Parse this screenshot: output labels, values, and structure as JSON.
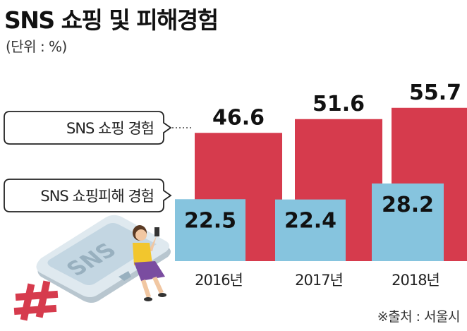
{
  "title": "SNS 쇼핑 및 피해경험",
  "unit_label": "(단위 : %)",
  "source": "※출처 : 서울시",
  "illustration_text": "SNS",
  "colors": {
    "experience": "#d63b4d",
    "damage": "#86c4de",
    "phone_body": "#dfe9ef",
    "hashtag": "#d63b4d",
    "dress": "#7a4ca0",
    "shirt": "#f2c62d"
  },
  "chart_data": {
    "type": "bar",
    "categories": [
      "2016년",
      "2017년",
      "2018년"
    ],
    "series": [
      {
        "name": "SNS 쇼핑 경험",
        "values": [
          46.6,
          51.6,
          55.7
        ]
      },
      {
        "name": "SNS 쇼핑피해 경험",
        "values": [
          22.5,
          22.4,
          28.2
        ]
      }
    ],
    "ylim": [
      0,
      60
    ],
    "grid": false,
    "legend_position": "left"
  }
}
